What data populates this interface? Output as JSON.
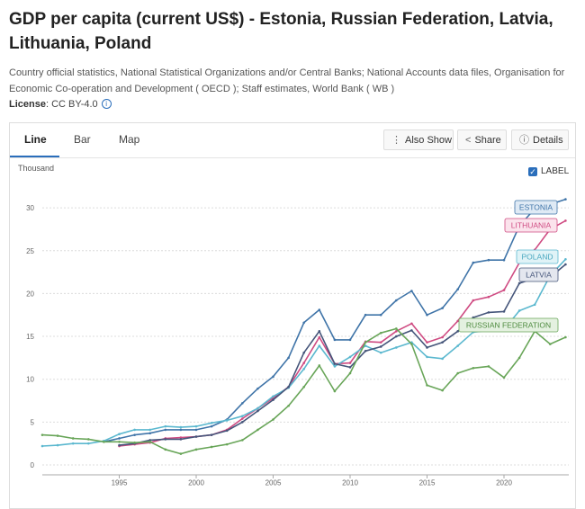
{
  "page": {
    "title": "GDP per capita (current US$) - Estonia, Russian Federation, Latvia, Lithuania, Poland",
    "source": "Country official statistics, National Statistical Organizations and/or Central Banks; National Accounts data files, Organisation for Economic Co-operation and Development ( OECD ); Staff estimates, World Bank ( WB )",
    "license_label": "License",
    "license_value": ": CC BY-4.0"
  },
  "tabs": [
    {
      "label": "Line",
      "active": true
    },
    {
      "label": "Bar",
      "active": false
    },
    {
      "label": "Map",
      "active": false
    }
  ],
  "toolbar": {
    "also_show": "Also Show",
    "share": "Share",
    "details": "Details"
  },
  "label_toggle": "LABEL",
  "colors": {
    "accent": "#2a6ebb",
    "estonia": "#3f74a8",
    "lithuania": "#cf4b82",
    "poland": "#5bb8cf",
    "latvia": "#45557a",
    "russia": "#68a558"
  },
  "chart_data": {
    "type": "line",
    "ylabel": "Thousand",
    "yticks": [
      0,
      5,
      10,
      15,
      20,
      25,
      30
    ],
    "xticks": [
      1995,
      2000,
      2005,
      2010,
      2015,
      2020
    ],
    "x": [
      1990,
      1991,
      1992,
      1993,
      1994,
      1995,
      1996,
      1997,
      1998,
      1999,
      2000,
      2001,
      2002,
      2003,
      2004,
      2005,
      2006,
      2007,
      2008,
      2009,
      2010,
      2011,
      2012,
      2013,
      2014,
      2015,
      2016,
      2017,
      2018,
      2019,
      2020,
      2021,
      2022,
      2023,
      2024
    ],
    "series": [
      {
        "name": "ESTONIA",
        "color": "#3f74a8",
        "label_color": "#3f74a8",
        "label_bg": "#dfeaf5",
        "values": [
          null,
          null,
          null,
          null,
          2.7,
          3.1,
          3.5,
          3.7,
          4.1,
          4.1,
          4.1,
          4.5,
          5.3,
          7.2,
          8.9,
          10.3,
          12.5,
          16.6,
          18.1,
          14.6,
          14.6,
          17.5,
          17.5,
          19.2,
          20.3,
          17.5,
          18.3,
          20.5,
          23.6,
          23.9,
          23.9,
          27.9,
          29.9,
          30.4,
          31.0
        ]
      },
      {
        "name": "LITHUANIA",
        "color": "#cf4b82",
        "label_color": "#cf4b82",
        "label_bg": "#fbe3ec",
        "values": [
          null,
          null,
          null,
          null,
          null,
          2.2,
          2.4,
          2.6,
          3.1,
          3.2,
          3.3,
          3.5,
          4.1,
          5.4,
          6.6,
          7.8,
          9.1,
          11.9,
          14.9,
          11.8,
          11.9,
          14.4,
          14.3,
          15.6,
          16.5,
          14.3,
          14.9,
          16.8,
          19.2,
          19.6,
          20.4,
          23.6,
          25.1,
          27.5,
          28.5
        ]
      },
      {
        "name": "POLAND",
        "color": "#5bb8cf",
        "label_color": "#4aa8c0",
        "label_bg": "#e0f3f7",
        "values": [
          2.2,
          2.3,
          2.5,
          2.5,
          2.8,
          3.6,
          4.1,
          4.1,
          4.5,
          4.4,
          4.5,
          4.9,
          5.2,
          5.7,
          6.6,
          8.0,
          9.0,
          11.2,
          13.9,
          11.5,
          12.6,
          13.9,
          13.1,
          13.7,
          14.3,
          12.6,
          12.4,
          13.9,
          15.5,
          15.7,
          15.8,
          18.0,
          18.7,
          22.1,
          24.0
        ]
      },
      {
        "name": "LATVIA",
        "color": "#45557a",
        "label_color": "#45557a",
        "label_bg": "#e4e7ef",
        "values": [
          null,
          null,
          null,
          null,
          null,
          2.3,
          2.5,
          2.9,
          3.0,
          3.0,
          3.3,
          3.5,
          4.0,
          5.0,
          6.3,
          7.6,
          9.1,
          13.1,
          15.6,
          11.8,
          11.4,
          13.3,
          13.8,
          15.0,
          15.7,
          13.7,
          14.3,
          15.6,
          17.2,
          17.8,
          17.9,
          21.2,
          21.8,
          21.9,
          23.4
        ]
      },
      {
        "name": "RUSSIAN FEDERATION",
        "color": "#68a558",
        "label_color": "#4d8a3e",
        "label_bg": "#e4f1e0",
        "values": [
          3.5,
          3.4,
          3.1,
          3.0,
          2.7,
          2.7,
          2.6,
          2.7,
          1.8,
          1.3,
          1.8,
          2.1,
          2.4,
          2.9,
          4.1,
          5.3,
          6.9,
          9.1,
          11.6,
          8.6,
          10.7,
          14.3,
          15.4,
          15.9,
          14.1,
          9.3,
          8.7,
          10.7,
          11.3,
          11.5,
          10.2,
          12.5,
          15.6,
          14.1,
          14.9
        ]
      }
    ]
  }
}
